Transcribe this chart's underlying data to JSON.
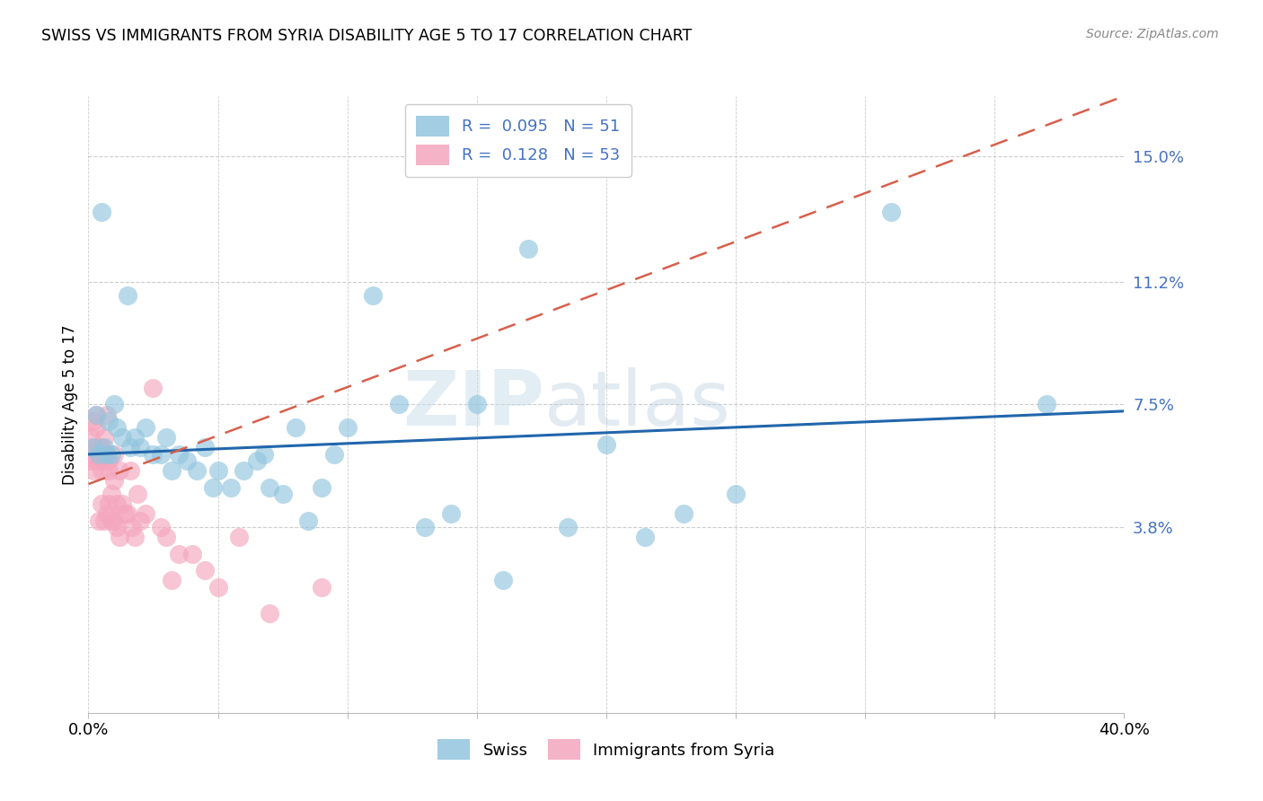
{
  "title": "SWISS VS IMMIGRANTS FROM SYRIA DISABILITY AGE 5 TO 17 CORRELATION CHART",
  "source": "Source: ZipAtlas.com",
  "ylabel": "Disability Age 5 to 17",
  "xlim": [
    0.0,
    0.4
  ],
  "ylim": [
    -0.018,
    0.168
  ],
  "yticks": [
    0.038,
    0.075,
    0.112,
    0.15
  ],
  "ytick_labels": [
    "3.8%",
    "7.5%",
    "11.2%",
    "15.0%"
  ],
  "xticks": [
    0.0,
    0.05,
    0.1,
    0.15,
    0.2,
    0.25,
    0.3,
    0.35,
    0.4
  ],
  "xtick_labels": [
    "0.0%",
    "",
    "",
    "",
    "",
    "",
    "",
    "",
    "40.0%"
  ],
  "swiss_color": "#92c5de",
  "syria_color": "#f4a6be",
  "swiss_line_color": "#2166ac",
  "syria_line_color": "#d6604d",
  "R_swiss": 0.095,
  "N_swiss": 51,
  "R_syria": 0.128,
  "N_syria": 53,
  "watermark": "ZIPatlas",
  "swiss_x": [
    0.002,
    0.003,
    0.004,
    0.005,
    0.006,
    0.007,
    0.008,
    0.009,
    0.01,
    0.011,
    0.013,
    0.015,
    0.016,
    0.018,
    0.02,
    0.022,
    0.025,
    0.028,
    0.03,
    0.032,
    0.035,
    0.038,
    0.042,
    0.045,
    0.048,
    0.05,
    0.055,
    0.06,
    0.065,
    0.068,
    0.07,
    0.075,
    0.08,
    0.085,
    0.09,
    0.095,
    0.1,
    0.11,
    0.12,
    0.13,
    0.14,
    0.15,
    0.16,
    0.17,
    0.185,
    0.2,
    0.215,
    0.23,
    0.25,
    0.31,
    0.37
  ],
  "swiss_y": [
    0.062,
    0.072,
    0.06,
    0.133,
    0.062,
    0.06,
    0.07,
    0.06,
    0.075,
    0.068,
    0.065,
    0.108,
    0.062,
    0.065,
    0.062,
    0.068,
    0.06,
    0.06,
    0.065,
    0.055,
    0.06,
    0.058,
    0.055,
    0.062,
    0.05,
    0.055,
    0.05,
    0.055,
    0.058,
    0.06,
    0.05,
    0.048,
    0.068,
    0.04,
    0.05,
    0.06,
    0.068,
    0.108,
    0.075,
    0.038,
    0.042,
    0.075,
    0.022,
    0.122,
    0.038,
    0.063,
    0.035,
    0.042,
    0.048,
    0.133,
    0.075
  ],
  "syria_x": [
    0.0,
    0.001,
    0.001,
    0.002,
    0.002,
    0.002,
    0.003,
    0.003,
    0.003,
    0.004,
    0.004,
    0.004,
    0.005,
    0.005,
    0.005,
    0.006,
    0.006,
    0.006,
    0.007,
    0.007,
    0.007,
    0.008,
    0.008,
    0.008,
    0.009,
    0.009,
    0.01,
    0.01,
    0.01,
    0.011,
    0.011,
    0.012,
    0.012,
    0.013,
    0.014,
    0.015,
    0.016,
    0.017,
    0.018,
    0.019,
    0.02,
    0.022,
    0.025,
    0.028,
    0.03,
    0.032,
    0.035,
    0.04,
    0.045,
    0.05,
    0.058,
    0.07,
    0.09
  ],
  "syria_y": [
    0.06,
    0.058,
    0.065,
    0.055,
    0.062,
    0.07,
    0.068,
    0.072,
    0.058,
    0.06,
    0.062,
    0.04,
    0.055,
    0.045,
    0.062,
    0.058,
    0.065,
    0.04,
    0.06,
    0.072,
    0.042,
    0.058,
    0.045,
    0.055,
    0.048,
    0.04,
    0.06,
    0.052,
    0.04,
    0.038,
    0.045,
    0.055,
    0.035,
    0.045,
    0.042,
    0.042,
    0.055,
    0.038,
    0.035,
    0.048,
    0.04,
    0.042,
    0.08,
    0.038,
    0.035,
    0.022,
    0.03,
    0.03,
    0.025,
    0.02,
    0.035,
    0.012,
    0.02
  ],
  "swiss_trendline_x": [
    0.0,
    0.4
  ],
  "swiss_trendline_y": [
    0.06,
    0.073
  ],
  "syria_trendline_x": [
    0.0,
    0.4
  ],
  "syria_trendline_y": [
    0.051,
    0.168
  ]
}
